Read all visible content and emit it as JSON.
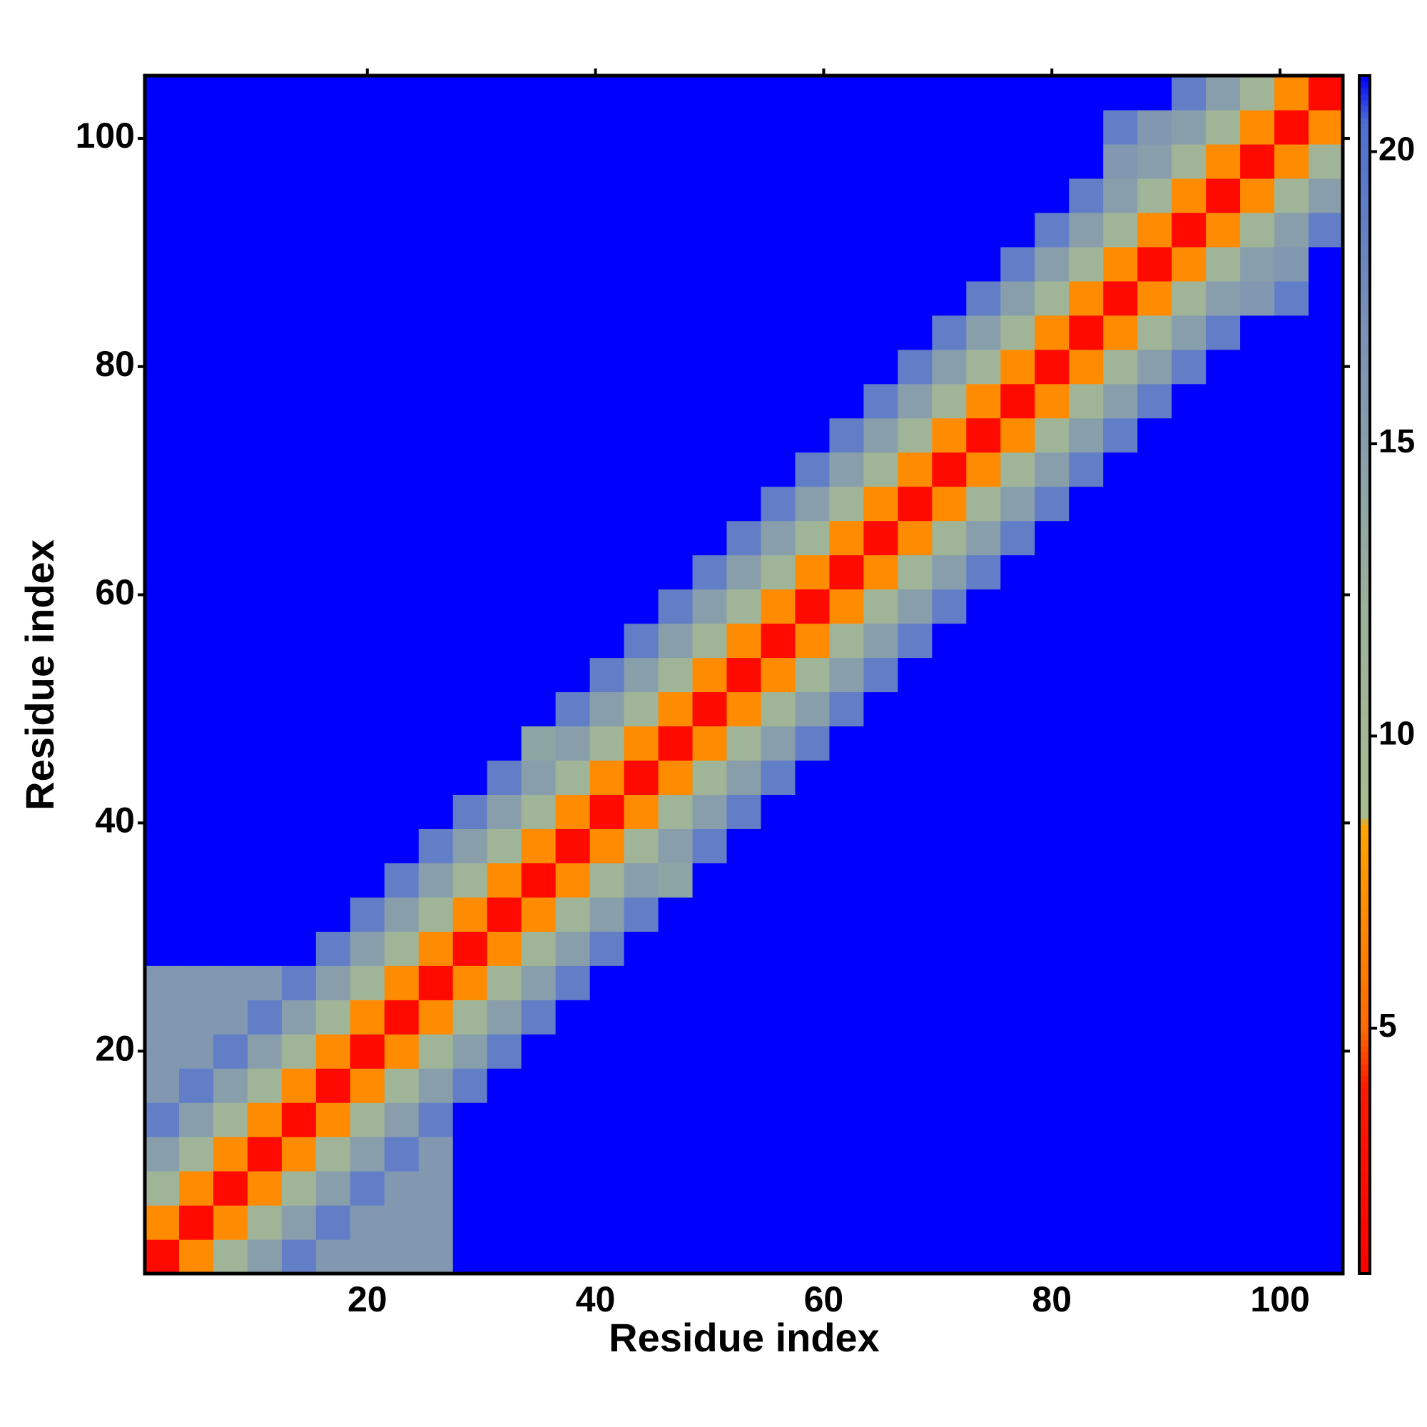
{
  "chart_data": {
    "type": "heatmap",
    "xlabel": "Residue index",
    "ylabel": "Residue index",
    "xlim": [
      0.5,
      105.5
    ],
    "ylim": [
      0.5,
      105.5
    ],
    "xticks": [
      20,
      40,
      60,
      80,
      100
    ],
    "yticks": [
      20,
      40,
      60,
      80,
      100
    ],
    "x_bins": [
      0.5,
      3.5,
      6.5,
      9.5,
      12.5,
      15.5,
      18.5,
      21.5,
      24.5,
      27.5,
      30.5,
      33.5,
      36.5,
      39.5,
      42.5,
      45.5,
      48.5,
      51.5,
      54.5,
      57.5,
      60.5,
      63.5,
      66.5,
      69.5,
      72.5,
      75.5,
      78.5,
      81.5,
      84.5,
      87.5,
      90.5,
      93.5,
      96.5,
      99.5,
      102.5,
      105.5
    ],
    "y_bins": [
      0.5,
      3.5,
      6.5,
      9.5,
      12.5,
      15.5,
      18.5,
      21.5,
      24.5,
      27.5,
      30.5,
      33.5,
      36.5,
      39.5,
      42.5,
      45.5,
      48.5,
      51.5,
      54.5,
      57.5,
      60.5,
      63.5,
      66.5,
      69.5,
      72.5,
      75.5,
      78.5,
      81.5,
      84.5,
      87.5,
      90.5,
      93.5,
      96.5,
      99.5,
      102.5,
      105.5
    ],
    "zlim": [
      0.8,
      21.3
    ],
    "colorbar_ticks": [
      5,
      10,
      15,
      20
    ],
    "colorscale": [
      [
        0.8,
        "#ff0000"
      ],
      [
        4,
        "#ff1a00"
      ],
      [
        5,
        "#ff6a00"
      ],
      [
        8.5,
        "#ffa500"
      ],
      [
        8.6,
        "#a9bb8f"
      ],
      [
        12,
        "#9cb29a"
      ],
      [
        17,
        "#7a92b6"
      ],
      [
        20.5,
        "#4e6fd2"
      ],
      [
        21.3,
        "#0000ff"
      ]
    ],
    "z": [
      [
        2,
        7,
        11,
        15,
        19,
        16,
        16,
        16,
        16,
        22,
        22,
        22,
        22,
        22,
        22,
        22,
        22,
        22,
        22,
        22,
        22,
        22,
        22,
        22,
        22,
        22,
        22,
        22,
        22,
        22,
        22,
        22,
        22,
        22,
        22
      ],
      [
        7,
        2,
        7,
        11,
        15,
        19,
        16,
        16,
        16,
        22,
        22,
        22,
        22,
        22,
        22,
        22,
        22,
        22,
        22,
        22,
        22,
        22,
        22,
        22,
        22,
        22,
        22,
        22,
        22,
        22,
        22,
        22,
        22,
        22,
        22
      ],
      [
        11,
        7,
        2,
        7,
        11,
        15,
        19,
        16,
        16,
        22,
        22,
        22,
        22,
        22,
        22,
        22,
        22,
        22,
        22,
        22,
        22,
        22,
        22,
        22,
        22,
        22,
        22,
        22,
        22,
        22,
        22,
        22,
        22,
        22,
        22
      ],
      [
        15,
        11,
        7,
        2,
        7,
        11,
        15,
        19,
        16,
        22,
        22,
        22,
        22,
        22,
        22,
        22,
        22,
        22,
        22,
        22,
        22,
        22,
        22,
        22,
        22,
        22,
        22,
        22,
        22,
        22,
        22,
        22,
        22,
        22,
        22
      ],
      [
        19,
        15,
        11,
        7,
        2,
        7,
        11,
        15,
        19,
        22,
        22,
        22,
        22,
        22,
        22,
        22,
        22,
        22,
        22,
        22,
        22,
        22,
        22,
        22,
        22,
        22,
        22,
        22,
        22,
        22,
        22,
        22,
        22,
        22,
        22
      ],
      [
        16,
        19,
        15,
        11,
        7,
        2,
        7,
        11,
        15,
        19,
        22,
        22,
        22,
        22,
        22,
        22,
        22,
        22,
        22,
        22,
        22,
        22,
        22,
        22,
        22,
        22,
        22,
        22,
        22,
        22,
        22,
        22,
        22,
        22,
        22
      ],
      [
        16,
        16,
        19,
        15,
        11,
        7,
        2,
        7,
        11,
        15,
        19,
        22,
        22,
        22,
        22,
        22,
        22,
        22,
        22,
        22,
        22,
        22,
        22,
        22,
        22,
        22,
        22,
        22,
        22,
        22,
        22,
        22,
        22,
        22,
        22
      ],
      [
        16,
        16,
        16,
        19,
        15,
        11,
        7,
        2,
        7,
        11,
        15,
        19,
        22,
        22,
        22,
        22,
        22,
        22,
        22,
        22,
        22,
        22,
        22,
        22,
        22,
        22,
        22,
        22,
        22,
        22,
        22,
        22,
        22,
        22,
        22
      ],
      [
        16,
        16,
        16,
        16,
        19,
        15,
        11,
        7,
        2,
        7,
        11,
        15,
        19,
        22,
        22,
        22,
        22,
        22,
        22,
        22,
        22,
        22,
        22,
        22,
        22,
        22,
        22,
        22,
        22,
        22,
        22,
        22,
        22,
        22,
        22
      ],
      [
        22,
        22,
        22,
        22,
        22,
        19,
        15,
        11,
        7,
        2,
        7,
        11,
        15,
        19,
        22,
        22,
        22,
        22,
        22,
        22,
        22,
        22,
        22,
        22,
        22,
        22,
        22,
        22,
        22,
        22,
        22,
        22,
        22,
        22,
        22
      ],
      [
        22,
        22,
        22,
        22,
        22,
        22,
        19,
        15,
        11,
        7,
        2,
        7,
        11,
        15,
        19,
        22,
        22,
        22,
        22,
        22,
        22,
        22,
        22,
        22,
        22,
        22,
        22,
        22,
        22,
        22,
        22,
        22,
        22,
        22,
        22
      ],
      [
        22,
        22,
        22,
        22,
        22,
        22,
        22,
        19,
        15,
        11,
        7,
        2,
        7,
        11,
        15,
        14,
        22,
        22,
        22,
        22,
        22,
        22,
        22,
        22,
        22,
        22,
        22,
        22,
        22,
        22,
        22,
        22,
        22,
        22,
        22
      ],
      [
        22,
        22,
        22,
        22,
        22,
        22,
        22,
        22,
        19,
        15,
        11,
        7,
        2,
        7,
        11,
        15,
        19,
        22,
        22,
        22,
        22,
        22,
        22,
        22,
        22,
        22,
        22,
        22,
        22,
        22,
        22,
        22,
        22,
        22,
        22
      ],
      [
        22,
        22,
        22,
        22,
        22,
        22,
        22,
        22,
        22,
        19,
        15,
        11,
        7,
        2,
        7,
        11,
        15,
        19,
        22,
        22,
        22,
        22,
        22,
        22,
        22,
        22,
        22,
        22,
        22,
        22,
        22,
        22,
        22,
        22,
        22
      ],
      [
        22,
        22,
        22,
        22,
        22,
        22,
        22,
        22,
        22,
        22,
        19,
        15,
        11,
        7,
        2,
        7,
        11,
        15,
        19,
        22,
        22,
        22,
        22,
        22,
        22,
        22,
        22,
        22,
        22,
        22,
        22,
        22,
        22,
        22,
        22
      ],
      [
        22,
        22,
        22,
        22,
        22,
        22,
        22,
        22,
        22,
        22,
        22,
        14,
        15,
        11,
        7,
        2,
        7,
        11,
        15,
        19,
        22,
        22,
        22,
        22,
        22,
        22,
        22,
        22,
        22,
        22,
        22,
        22,
        22,
        22,
        22
      ],
      [
        22,
        22,
        22,
        22,
        22,
        22,
        22,
        22,
        22,
        22,
        22,
        22,
        19,
        15,
        11,
        7,
        2,
        7,
        11,
        15,
        19,
        22,
        22,
        22,
        22,
        22,
        22,
        22,
        22,
        22,
        22,
        22,
        22,
        22,
        22
      ],
      [
        22,
        22,
        22,
        22,
        22,
        22,
        22,
        22,
        22,
        22,
        22,
        22,
        22,
        19,
        15,
        11,
        7,
        2,
        7,
        11,
        15,
        19,
        22,
        22,
        22,
        22,
        22,
        22,
        22,
        22,
        22,
        22,
        22,
        22,
        22
      ],
      [
        22,
        22,
        22,
        22,
        22,
        22,
        22,
        22,
        22,
        22,
        22,
        22,
        22,
        22,
        19,
        15,
        11,
        7,
        2,
        7,
        11,
        15,
        19,
        22,
        22,
        22,
        22,
        22,
        22,
        22,
        22,
        22,
        22,
        22,
        22
      ],
      [
        22,
        22,
        22,
        22,
        22,
        22,
        22,
        22,
        22,
        22,
        22,
        22,
        22,
        22,
        22,
        19,
        15,
        11,
        7,
        2,
        7,
        11,
        15,
        19,
        22,
        22,
        22,
        22,
        22,
        22,
        22,
        22,
        22,
        22,
        22
      ],
      [
        22,
        22,
        22,
        22,
        22,
        22,
        22,
        22,
        22,
        22,
        22,
        22,
        22,
        22,
        22,
        22,
        19,
        15,
        11,
        7,
        2,
        7,
        11,
        15,
        19,
        22,
        22,
        22,
        22,
        22,
        22,
        22,
        22,
        22,
        22
      ],
      [
        22,
        22,
        22,
        22,
        22,
        22,
        22,
        22,
        22,
        22,
        22,
        22,
        22,
        22,
        22,
        22,
        22,
        19,
        15,
        11,
        7,
        2,
        7,
        11,
        15,
        19,
        22,
        22,
        22,
        22,
        22,
        22,
        22,
        22,
        22
      ],
      [
        22,
        22,
        22,
        22,
        22,
        22,
        22,
        22,
        22,
        22,
        22,
        22,
        22,
        22,
        22,
        22,
        22,
        22,
        19,
        15,
        11,
        7,
        2,
        7,
        11,
        15,
        19,
        22,
        22,
        22,
        22,
        22,
        22,
        22,
        22
      ],
      [
        22,
        22,
        22,
        22,
        22,
        22,
        22,
        22,
        22,
        22,
        22,
        22,
        22,
        22,
        22,
        22,
        22,
        22,
        22,
        19,
        15,
        11,
        7,
        2,
        7,
        11,
        15,
        19,
        22,
        22,
        22,
        22,
        22,
        22,
        22
      ],
      [
        22,
        22,
        22,
        22,
        22,
        22,
        22,
        22,
        22,
        22,
        22,
        22,
        22,
        22,
        22,
        22,
        22,
        22,
        22,
        22,
        19,
        15,
        11,
        7,
        2,
        7,
        11,
        15,
        19,
        22,
        22,
        22,
        22,
        22,
        22
      ],
      [
        22,
        22,
        22,
        22,
        22,
        22,
        22,
        22,
        22,
        22,
        22,
        22,
        22,
        22,
        22,
        22,
        22,
        22,
        22,
        22,
        22,
        19,
        15,
        11,
        7,
        2,
        7,
        11,
        15,
        19,
        22,
        22,
        22,
        22,
        22
      ],
      [
        22,
        22,
        22,
        22,
        22,
        22,
        22,
        22,
        22,
        22,
        22,
        22,
        22,
        22,
        22,
        22,
        22,
        22,
        22,
        22,
        22,
        22,
        19,
        15,
        11,
        7,
        2,
        7,
        11,
        15,
        19,
        22,
        22,
        22,
        22
      ],
      [
        22,
        22,
        22,
        22,
        22,
        22,
        22,
        22,
        22,
        22,
        22,
        22,
        22,
        22,
        22,
        22,
        22,
        22,
        22,
        22,
        22,
        22,
        22,
        19,
        15,
        11,
        7,
        2,
        7,
        11,
        15,
        19,
        22,
        22,
        22
      ],
      [
        22,
        22,
        22,
        22,
        22,
        22,
        22,
        22,
        22,
        22,
        22,
        22,
        22,
        22,
        22,
        22,
        22,
        22,
        22,
        22,
        22,
        22,
        22,
        22,
        19,
        15,
        11,
        7,
        2,
        7,
        11,
        15,
        16,
        19,
        22
      ],
      [
        22,
        22,
        22,
        22,
        22,
        22,
        22,
        22,
        22,
        22,
        22,
        22,
        22,
        22,
        22,
        22,
        22,
        22,
        22,
        22,
        22,
        22,
        22,
        22,
        22,
        19,
        15,
        11,
        7,
        2,
        7,
        11,
        15,
        16,
        22
      ],
      [
        22,
        22,
        22,
        22,
        22,
        22,
        22,
        22,
        22,
        22,
        22,
        22,
        22,
        22,
        22,
        22,
        22,
        22,
        22,
        22,
        22,
        22,
        22,
        22,
        22,
        22,
        19,
        15,
        11,
        7,
        2,
        7,
        11,
        15,
        19
      ],
      [
        22,
        22,
        22,
        22,
        22,
        22,
        22,
        22,
        22,
        22,
        22,
        22,
        22,
        22,
        22,
        22,
        22,
        22,
        22,
        22,
        22,
        22,
        22,
        22,
        22,
        22,
        22,
        19,
        15,
        11,
        7,
        2,
        7,
        11,
        15
      ],
      [
        22,
        22,
        22,
        22,
        22,
        22,
        22,
        22,
        22,
        22,
        22,
        22,
        22,
        22,
        22,
        22,
        22,
        22,
        22,
        22,
        22,
        22,
        22,
        22,
        22,
        22,
        22,
        22,
        16,
        15,
        11,
        7,
        2,
        7,
        11
      ],
      [
        22,
        22,
        22,
        22,
        22,
        22,
        22,
        22,
        22,
        22,
        22,
        22,
        22,
        22,
        22,
        22,
        22,
        22,
        22,
        22,
        22,
        22,
        22,
        22,
        22,
        22,
        22,
        22,
        19,
        16,
        15,
        11,
        7,
        2,
        7
      ],
      [
        22,
        22,
        22,
        22,
        22,
        22,
        22,
        22,
        22,
        22,
        22,
        22,
        22,
        22,
        22,
        22,
        22,
        22,
        22,
        22,
        22,
        22,
        22,
        22,
        22,
        22,
        22,
        22,
        22,
        22,
        19,
        15,
        11,
        7,
        2
      ]
    ]
  }
}
